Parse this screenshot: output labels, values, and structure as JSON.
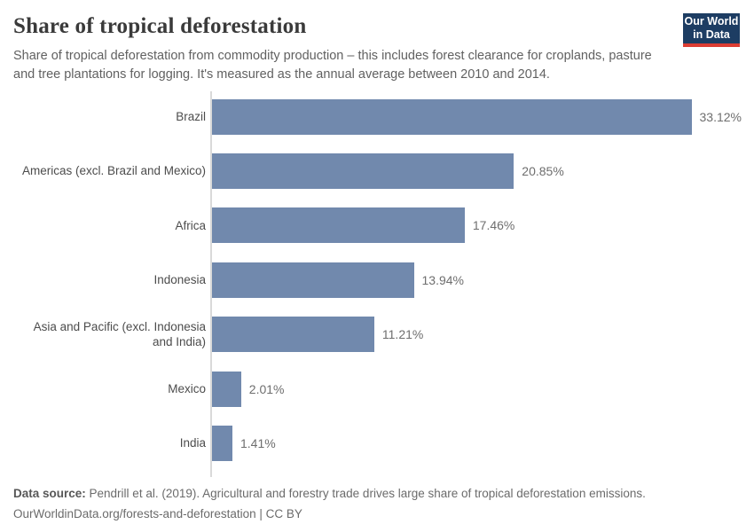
{
  "header": {
    "title": "Share of tropical deforestation",
    "subtitle": "Share of tropical deforestation from commodity production – this includes forest clearance for croplands, pasture and tree plantations for logging. It's measured as the annual average between 2010 and 2014."
  },
  "logo": {
    "line1": "Our World",
    "line2": "in Data",
    "bg_color": "#1d3d63",
    "accent_color": "#dc3d33"
  },
  "chart_data": {
    "type": "bar",
    "orientation": "horizontal",
    "title": "Share of tropical deforestation",
    "categories": [
      "Brazil",
      "Americas (excl. Brazil and Mexico)",
      "Africa",
      "Indonesia",
      "Asia and Pacific (excl. Indonesia and India)",
      "Mexico",
      "India"
    ],
    "values": [
      33.12,
      20.85,
      17.46,
      13.94,
      11.21,
      2.01,
      1.41
    ],
    "value_labels": [
      "33.12%",
      "20.85%",
      "17.46%",
      "13.94%",
      "11.21%",
      "2.01%",
      "1.41%"
    ],
    "unit": "%",
    "xlim": [
      0,
      35
    ],
    "grid": false,
    "legend": false,
    "bar_color": "#7189ad",
    "axis_color": "#d9d9d9"
  },
  "footer": {
    "source_label": "Data source:",
    "source_text": " Pendrill et al. (2019). Agricultural and forestry trade drives large share of tropical deforestation emissions.",
    "link": "OurWorldinData.org/forests-and-deforestation",
    "license": " | CC BY"
  }
}
